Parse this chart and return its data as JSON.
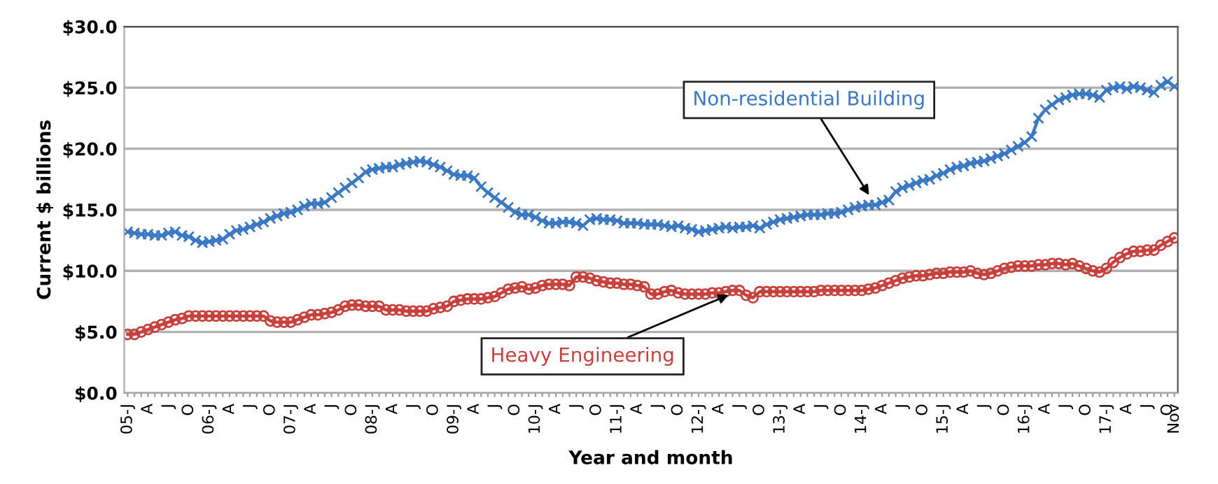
{
  "chart_data": {
    "type": "line",
    "xlabel": "Year and month",
    "ylabel": "Current $ billions",
    "categories": [
      "05-J",
      null,
      null,
      "A",
      null,
      null,
      "J",
      null,
      null,
      "O",
      null,
      null,
      "06-J",
      null,
      null,
      "A",
      null,
      null,
      "J",
      null,
      null,
      "O",
      null,
      null,
      "07-J",
      null,
      null,
      "A",
      null,
      null,
      "J",
      null,
      null,
      "O",
      null,
      null,
      "08-J",
      null,
      null,
      "A",
      null,
      null,
      "J",
      null,
      null,
      "O",
      null,
      null,
      "09-J",
      null,
      null,
      "A",
      null,
      null,
      "J",
      null,
      null,
      "O",
      null,
      null,
      "10-J",
      null,
      null,
      "A",
      null,
      null,
      "J",
      null,
      null,
      "O",
      null,
      null,
      "11-J",
      null,
      null,
      "A",
      null,
      null,
      "J",
      null,
      null,
      "O",
      null,
      null,
      "12-J",
      null,
      null,
      "A",
      null,
      null,
      "J",
      null,
      null,
      "O",
      null,
      null,
      "13-J",
      null,
      null,
      "A",
      null,
      null,
      "J",
      null,
      null,
      "O",
      null,
      null,
      "14-J",
      null,
      null,
      "A",
      null,
      null,
      "J",
      null,
      null,
      "O",
      null,
      null,
      "15-J",
      null,
      null,
      "A",
      null,
      null,
      "J",
      null,
      null,
      "O",
      null,
      null,
      "16-J",
      null,
      null,
      "A",
      null,
      null,
      "J",
      null,
      null,
      "O",
      null,
      null,
      "17-J",
      null,
      null,
      "A",
      null,
      null,
      "J",
      null,
      null,
      "O",
      "Nov"
    ],
    "series": [
      {
        "name": "Non-residential Building",
        "color": "#3a78c3",
        "marker": "cross",
        "values": [
          13.2,
          13.1,
          13.0,
          13.0,
          12.9,
          12.9,
          13.1,
          13.2,
          12.9,
          12.8,
          12.5,
          12.3,
          12.4,
          12.5,
          12.6,
          13.0,
          13.3,
          13.4,
          13.6,
          13.8,
          14.0,
          14.3,
          14.5,
          14.7,
          14.8,
          15.0,
          15.3,
          15.5,
          15.5,
          15.6,
          16.0,
          16.4,
          16.8,
          17.2,
          17.6,
          18.1,
          18.3,
          18.4,
          18.5,
          18.5,
          18.7,
          18.8,
          18.9,
          19.0,
          18.9,
          18.7,
          18.5,
          18.2,
          17.9,
          17.8,
          17.8,
          17.6,
          16.9,
          16.4,
          16.0,
          15.6,
          15.2,
          14.8,
          14.6,
          14.6,
          14.4,
          14.1,
          13.9,
          13.9,
          14.0,
          14.0,
          13.9,
          13.7,
          14.2,
          14.3,
          14.2,
          14.2,
          14.1,
          13.9,
          13.9,
          13.9,
          13.8,
          13.8,
          13.8,
          13.7,
          13.6,
          13.7,
          13.5,
          13.4,
          13.2,
          13.3,
          13.4,
          13.5,
          13.6,
          13.5,
          13.6,
          13.6,
          13.7,
          13.5,
          13.8,
          14.0,
          14.2,
          14.3,
          14.4,
          14.5,
          14.6,
          14.6,
          14.6,
          14.7,
          14.7,
          14.8,
          15.0,
          15.2,
          15.3,
          15.4,
          15.4,
          15.6,
          15.8,
          16.5,
          16.8,
          17.0,
          17.2,
          17.4,
          17.5,
          17.8,
          18.0,
          18.3,
          18.5,
          18.6,
          18.8,
          18.9,
          19.0,
          19.2,
          19.4,
          19.6,
          19.9,
          20.2,
          20.5,
          21.0,
          22.5,
          23.2,
          23.6,
          24.0,
          24.2,
          24.4,
          24.5,
          24.5,
          24.4,
          24.2,
          24.8,
          25.0,
          25.1,
          24.9,
          25.1,
          25.0,
          24.8,
          24.6,
          25.2,
          25.5,
          25.1
        ]
      },
      {
        "name": "Heavy Engineering",
        "color": "#c8403c",
        "marker": "circle",
        "values": [
          4.8,
          4.8,
          5.0,
          5.2,
          5.4,
          5.6,
          5.8,
          6.0,
          6.1,
          6.3,
          6.3,
          6.3,
          6.3,
          6.3,
          6.3,
          6.3,
          6.3,
          6.3,
          6.3,
          6.3,
          6.3,
          5.9,
          5.8,
          5.8,
          5.8,
          6.0,
          6.2,
          6.4,
          6.4,
          6.5,
          6.6,
          6.8,
          7.1,
          7.2,
          7.2,
          7.1,
          7.1,
          7.1,
          6.8,
          6.8,
          6.8,
          6.7,
          6.7,
          6.7,
          6.7,
          6.9,
          7.0,
          7.1,
          7.5,
          7.6,
          7.7,
          7.7,
          7.7,
          7.8,
          7.9,
          8.2,
          8.5,
          8.6,
          8.7,
          8.5,
          8.6,
          8.8,
          8.9,
          8.9,
          8.9,
          8.8,
          9.5,
          9.5,
          9.4,
          9.2,
          9.1,
          9.0,
          9.0,
          8.9,
          8.9,
          8.8,
          8.7,
          8.1,
          8.1,
          8.3,
          8.4,
          8.2,
          8.1,
          8.1,
          8.1,
          8.1,
          8.2,
          8.2,
          8.3,
          8.4,
          8.4,
          8.0,
          7.8,
          8.3,
          8.3,
          8.3,
          8.3,
          8.3,
          8.3,
          8.3,
          8.3,
          8.3,
          8.4,
          8.4,
          8.4,
          8.4,
          8.4,
          8.4,
          8.4,
          8.5,
          8.6,
          8.8,
          9.0,
          9.2,
          9.4,
          9.5,
          9.6,
          9.6,
          9.7,
          9.8,
          9.8,
          9.9,
          9.9,
          9.9,
          10.0,
          9.8,
          9.7,
          9.8,
          10.0,
          10.2,
          10.3,
          10.4,
          10.4,
          10.4,
          10.5,
          10.5,
          10.6,
          10.6,
          10.5,
          10.6,
          10.4,
          10.2,
          10.0,
          9.9,
          10.2,
          10.7,
          11.1,
          11.4,
          11.6,
          11.6,
          11.7,
          11.7,
          12.1,
          12.4,
          12.7
        ]
      }
    ],
    "ylim": [
      0,
      30
    ],
    "yticks": [
      {
        "value": 0,
        "label": "$0.0"
      },
      {
        "value": 5,
        "label": "$5.0"
      },
      {
        "value": 10,
        "label": "$10.0"
      },
      {
        "value": 15,
        "label": "$15.0"
      },
      {
        "value": 20,
        "label": "$20.0"
      },
      {
        "value": 25,
        "label": "$25.0"
      },
      {
        "value": 30,
        "label": "$30.0"
      }
    ],
    "grid": "y"
  }
}
